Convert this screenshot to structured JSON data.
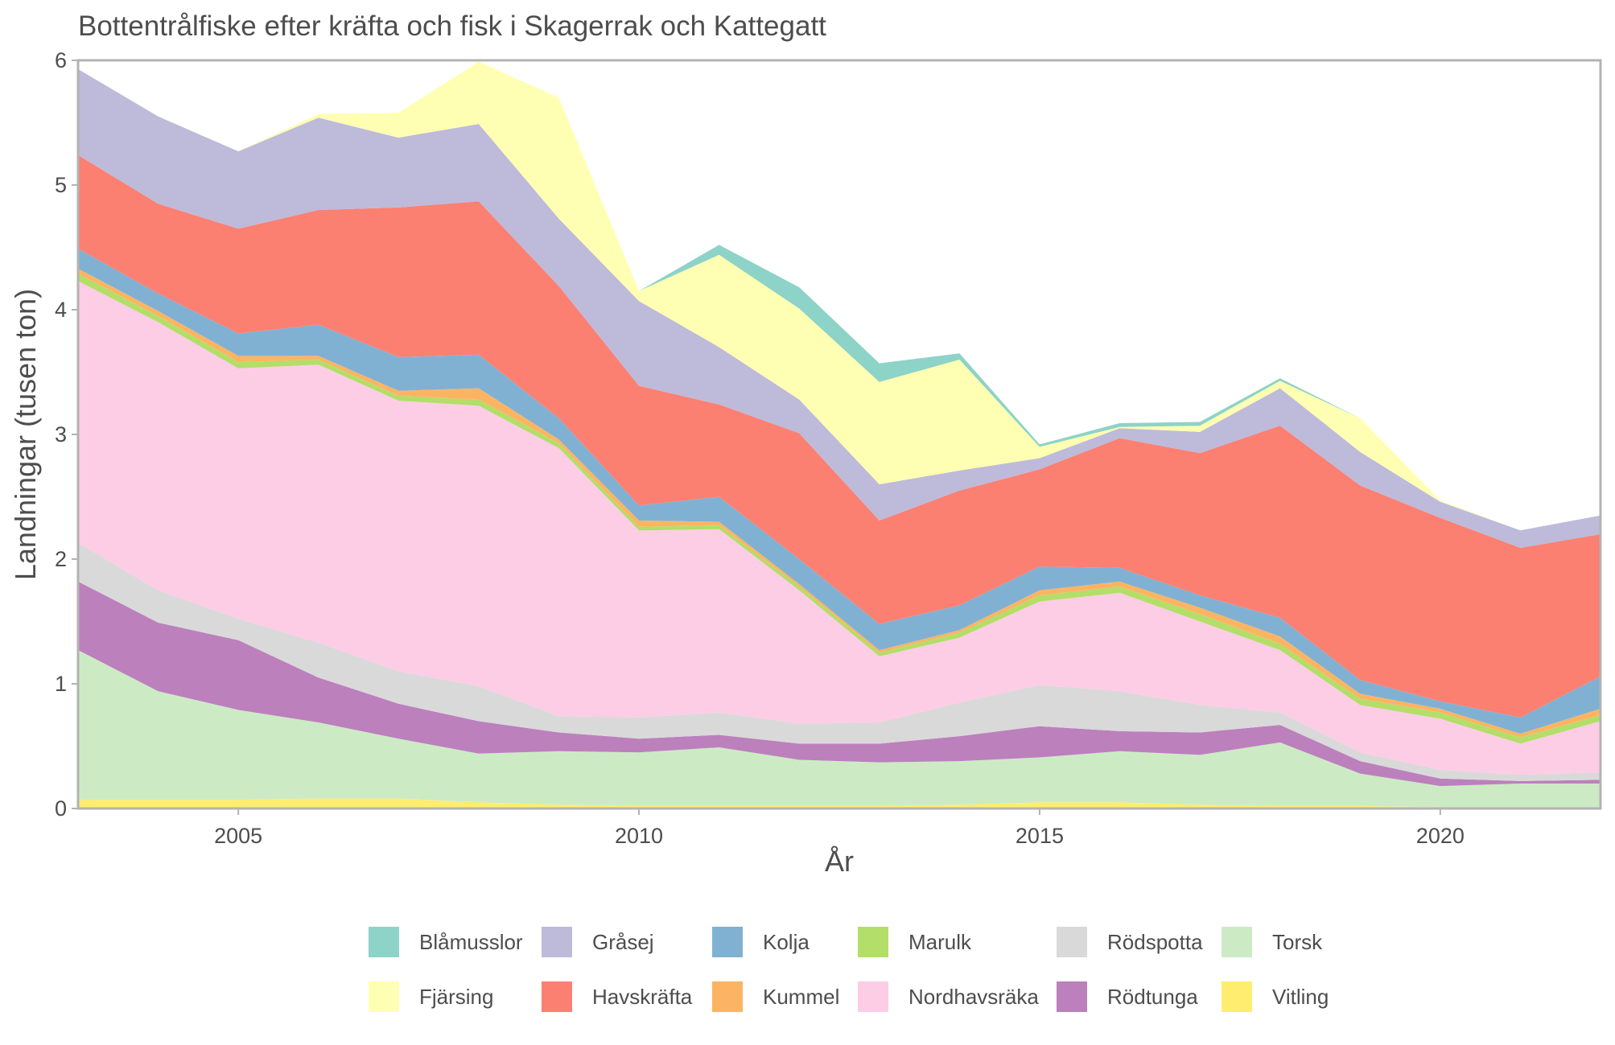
{
  "chart_data": {
    "type": "area",
    "stacked": true,
    "title": "Bottentrålfiske efter kräfta och fisk i Skagerrak och Kattegatt",
    "xlabel": "År",
    "ylabel": "Landningar (tusen ton)",
    "xlim": [
      2003,
      2022
    ],
    "ylim": [
      0,
      6
    ],
    "x_ticks": [
      2005,
      2010,
      2015,
      2020
    ],
    "y_ticks": [
      0,
      1,
      2,
      3,
      4,
      5,
      6
    ],
    "grid": false,
    "legend_position": "bottom",
    "x": [
      2003,
      2004,
      2005,
      2006,
      2007,
      2008,
      2009,
      2010,
      2011,
      2012,
      2013,
      2014,
      2015,
      2016,
      2017,
      2018,
      2019,
      2020,
      2021,
      2022
    ],
    "series": [
      {
        "name": "Vitling",
        "color": "#FFED6F",
        "values": [
          0.07,
          0.07,
          0.07,
          0.08,
          0.08,
          0.05,
          0.03,
          0.02,
          0.02,
          0.02,
          0.02,
          0.03,
          0.05,
          0.05,
          0.03,
          0.02,
          0.02,
          0.01,
          0.01,
          0.01
        ]
      },
      {
        "name": "Torsk",
        "color": "#CCEBC5",
        "values": [
          1.2,
          0.87,
          0.72,
          0.61,
          0.48,
          0.39,
          0.43,
          0.43,
          0.47,
          0.37,
          0.35,
          0.35,
          0.36,
          0.41,
          0.4,
          0.51,
          0.26,
          0.17,
          0.19,
          0.19
        ]
      },
      {
        "name": "Rödtunga",
        "color": "#BC80BD",
        "values": [
          0.55,
          0.55,
          0.56,
          0.36,
          0.28,
          0.26,
          0.15,
          0.11,
          0.1,
          0.13,
          0.15,
          0.2,
          0.25,
          0.16,
          0.18,
          0.14,
          0.1,
          0.06,
          0.02,
          0.03
        ]
      },
      {
        "name": "Rödspotta",
        "color": "#D9D9D9",
        "values": [
          0.31,
          0.26,
          0.17,
          0.28,
          0.26,
          0.28,
          0.13,
          0.17,
          0.18,
          0.16,
          0.17,
          0.27,
          0.33,
          0.32,
          0.22,
          0.1,
          0.07,
          0.07,
          0.05,
          0.06
        ]
      },
      {
        "name": "Nordhavsräka",
        "color": "#FCCDE5",
        "values": [
          2.1,
          2.15,
          2.01,
          2.23,
          2.17,
          2.25,
          2.15,
          1.5,
          1.47,
          1.07,
          0.53,
          0.52,
          0.67,
          0.79,
          0.67,
          0.5,
          0.38,
          0.41,
          0.25,
          0.41
        ]
      },
      {
        "name": "Marulk",
        "color": "#B3DE69",
        "values": [
          0.06,
          0.05,
          0.05,
          0.04,
          0.04,
          0.05,
          0.04,
          0.03,
          0.03,
          0.03,
          0.03,
          0.04,
          0.05,
          0.05,
          0.06,
          0.05,
          0.05,
          0.05,
          0.05,
          0.05
        ]
      },
      {
        "name": "Kummel",
        "color": "#FDB462",
        "values": [
          0.04,
          0.04,
          0.05,
          0.03,
          0.04,
          0.09,
          0.03,
          0.05,
          0.03,
          0.02,
          0.02,
          0.02,
          0.04,
          0.04,
          0.05,
          0.06,
          0.04,
          0.03,
          0.03,
          0.05
        ]
      },
      {
        "name": "Kolja",
        "color": "#80B1D3",
        "values": [
          0.16,
          0.14,
          0.18,
          0.25,
          0.27,
          0.27,
          0.17,
          0.12,
          0.2,
          0.2,
          0.21,
          0.2,
          0.19,
          0.11,
          0.1,
          0.15,
          0.11,
          0.06,
          0.13,
          0.26
        ]
      },
      {
        "name": "Havskräfta",
        "color": "#FB8072",
        "values": [
          0.75,
          0.72,
          0.84,
          0.92,
          1.2,
          1.23,
          1.06,
          0.96,
          0.74,
          1.01,
          0.83,
          0.92,
          0.78,
          1.04,
          1.14,
          1.54,
          1.56,
          1.47,
          1.36,
          1.14
        ]
      },
      {
        "name": "Gråsej",
        "color": "#BEBADA",
        "values": [
          0.69,
          0.7,
          0.62,
          0.74,
          0.56,
          0.62,
          0.54,
          0.68,
          0.46,
          0.27,
          0.29,
          0.16,
          0.09,
          0.08,
          0.17,
          0.3,
          0.27,
          0.13,
          0.14,
          0.15
        ]
      },
      {
        "name": "Fjärsing",
        "color": "#FFFFB3",
        "values": [
          0.0,
          0.0,
          0.0,
          0.03,
          0.2,
          0.5,
          0.97,
          0.08,
          0.74,
          0.73,
          0.82,
          0.89,
          0.09,
          0.01,
          0.05,
          0.06,
          0.27,
          0.01,
          0.0,
          0.0
        ]
      },
      {
        "name": "Blåmusslor",
        "color": "#8DD3C7",
        "values": [
          0.0,
          0.0,
          0.0,
          0.0,
          0.0,
          0.0,
          0.0,
          0.0,
          0.08,
          0.17,
          0.15,
          0.05,
          0.02,
          0.03,
          0.03,
          0.02,
          0.0,
          0.0,
          0.0,
          0.0
        ]
      }
    ],
    "legend": {
      "columns": [
        [
          "Blåmusslor",
          "Fjärsing"
        ],
        [
          "Gråsej",
          "Havskräfta"
        ],
        [
          "Kolja",
          "Kummel"
        ],
        [
          "Marulk",
          "Nordhavsräka"
        ],
        [
          "Rödspotta",
          "Rödtunga"
        ],
        [
          "Torsk",
          "Vitling"
        ]
      ]
    },
    "colors": {
      "panel_border": "#B3B3B3",
      "text": "#4D4D4D",
      "axis": "#B3B3B3"
    }
  }
}
